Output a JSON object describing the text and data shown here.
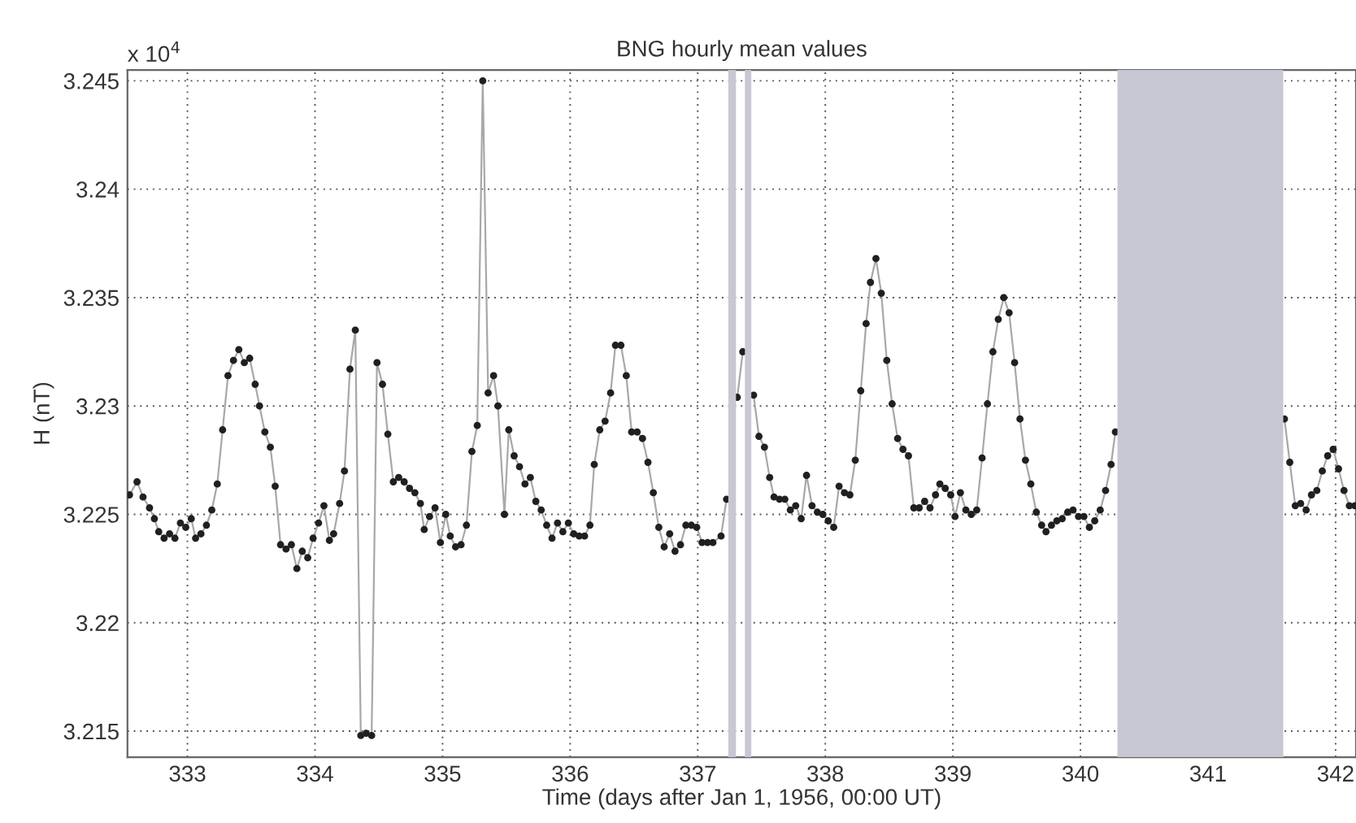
{
  "chart_data": {
    "type": "line",
    "title": "BNG hourly mean values",
    "xlabel": "Time (days after Jan 1, 1956, 00:00 UT)",
    "ylabel": "H (nT)",
    "annotations": [
      "x 10$^{4}$"
    ],
    "xlim": [
      332.53,
      342.16
    ],
    "xticks": [
      333,
      334,
      335,
      336,
      337,
      338,
      339,
      340,
      341,
      342
    ],
    "ylim": [
      3.2138,
      3.2455
    ],
    "yticks": [
      3.215,
      3.22,
      3.225,
      3.23,
      3.235,
      3.24,
      3.245
    ],
    "grid": true,
    "marker": "circle",
    "line_style": "solid",
    "bands": [
      {
        "axis": "x",
        "from": 337.24,
        "to": 337.3,
        "color": "#c8c8d4"
      },
      {
        "axis": "x",
        "from": 337.37,
        "to": 337.42,
        "color": "#c8c8d4"
      },
      {
        "axis": "x",
        "from": 340.29,
        "to": 341.59,
        "color": "#c8c8d4"
      }
    ],
    "series": [
      {
        "color": "#a8a8a8",
        "x": [
          332.546,
          332.605,
          332.652,
          332.703,
          332.741,
          332.775,
          332.817,
          332.86,
          332.902,
          332.945,
          332.987,
          333.03,
          333.064,
          333.106,
          333.149,
          333.191,
          333.234,
          333.276,
          333.318,
          333.361,
          333.403,
          333.446,
          333.488,
          333.531,
          333.565,
          333.607,
          333.65,
          333.688,
          333.73,
          333.773,
          333.815,
          333.858,
          333.9,
          333.943,
          333.985,
          334.028,
          334.07,
          334.113,
          334.146,
          334.193,
          334.231,
          334.274,
          334.316,
          334.359,
          334.401,
          334.444,
          334.486,
          334.529,
          334.571,
          334.614,
          334.656,
          334.699,
          334.741,
          334.783,
          334.826,
          334.856,
          334.898,
          334.941,
          334.983,
          335.025,
          335.06,
          335.102,
          335.145,
          335.187,
          335.23,
          335.272,
          335.315,
          335.357,
          335.4,
          335.434,
          335.485,
          335.519,
          335.561,
          335.603,
          335.646,
          335.688,
          335.731,
          335.773,
          335.816,
          335.858,
          335.901,
          335.943,
          335.986,
          336.028,
          336.071,
          336.113,
          336.155,
          336.189,
          336.232,
          336.274,
          336.317,
          336.355,
          336.398,
          336.44,
          336.482,
          336.525,
          336.567,
          336.61,
          336.652,
          336.695,
          336.737,
          336.78,
          336.822,
          336.865,
          336.907,
          336.95,
          336.992,
          337.034,
          337.077,
          337.119,
          337.183,
          337.226,
          337.27,
          337.31,
          337.353,
          337.395,
          337.438,
          337.48,
          337.523,
          337.564,
          337.598,
          337.641,
          337.683,
          337.726,
          337.768,
          337.811,
          337.853,
          337.896,
          337.938,
          337.981,
          338.023,
          338.066,
          338.108,
          338.15,
          338.193,
          338.235,
          338.278,
          338.32,
          338.354,
          338.397,
          338.439,
          338.482,
          338.524,
          338.567,
          338.609,
          338.652,
          338.694,
          338.736,
          338.779,
          338.821,
          338.864,
          338.898,
          338.94,
          338.983,
          339.017,
          339.059,
          339.102,
          339.144,
          339.187,
          339.229,
          339.271,
          339.314,
          339.356,
          339.399,
          339.441,
          339.484,
          339.526,
          339.569,
          339.611,
          339.654,
          339.696,
          339.73,
          339.773,
          339.815,
          339.857,
          339.9,
          339.942,
          339.985,
          340.027,
          340.07,
          340.112,
          340.155,
          340.197,
          340.24,
          340.274,
          340.9,
          341.599,
          341.641,
          341.684,
          341.726,
          341.769,
          341.811,
          341.853,
          341.896,
          341.938,
          341.981,
          342.023,
          342.066,
          342.108,
          342.151
        ],
        "values": [
          3.2259,
          3.2265,
          3.2258,
          3.2253,
          3.2248,
          3.2242,
          3.2239,
          3.2241,
          3.2239,
          3.2246,
          3.2244,
          3.2248,
          3.2239,
          3.2241,
          3.2245,
          3.2252,
          3.2264,
          3.2289,
          3.2314,
          3.2321,
          3.2326,
          3.232,
          3.2322,
          3.231,
          3.23,
          3.2288,
          3.2281,
          3.2263,
          3.2236,
          3.2234,
          3.2236,
          3.2225,
          3.2233,
          3.223,
          3.2239,
          3.2246,
          3.2254,
          3.2238,
          3.2241,
          3.2255,
          3.227,
          3.2317,
          3.2335,
          3.2148,
          3.2149,
          3.2148,
          3.232,
          3.231,
          3.2287,
          3.2265,
          3.2267,
          3.2265,
          3.2262,
          3.226,
          3.2255,
          3.2243,
          3.2249,
          3.2253,
          3.2237,
          3.225,
          3.224,
          3.2235,
          3.2236,
          3.2245,
          3.2279,
          3.2291,
          3.245,
          3.2306,
          3.2314,
          3.23,
          3.225,
          3.2289,
          3.2277,
          3.2272,
          3.2264,
          3.2267,
          3.2256,
          3.2252,
          3.2245,
          3.2239,
          3.2246,
          3.2242,
          3.2246,
          3.2241,
          3.224,
          3.224,
          3.2245,
          3.2273,
          3.2289,
          3.2293,
          3.2306,
          3.2328,
          3.2328,
          3.2314,
          3.2288,
          3.2288,
          3.2285,
          3.2274,
          3.226,
          3.2244,
          3.2235,
          3.2241,
          3.2233,
          3.2236,
          3.2245,
          3.2245,
          3.2244,
          3.2237,
          3.2237,
          3.2237,
          3.224,
          3.2257,
          null,
          3.2304,
          3.2325,
          null,
          3.2305,
          3.2286,
          3.2281,
          3.2267,
          3.2258,
          3.2257,
          3.2257,
          3.2252,
          3.2254,
          3.2248,
          3.2268,
          3.2254,
          3.2251,
          3.225,
          3.2247,
          3.2244,
          3.2263,
          3.226,
          3.2259,
          3.2275,
          3.2307,
          3.2338,
          3.2357,
          3.2368,
          3.2352,
          3.2321,
          3.2301,
          3.2285,
          3.228,
          3.2277,
          3.2253,
          3.2253,
          3.2256,
          3.2253,
          3.2259,
          3.2264,
          3.2262,
          3.2259,
          3.2249,
          3.226,
          3.2252,
          3.225,
          3.2252,
          3.2276,
          3.2301,
          3.2325,
          3.234,
          3.235,
          3.2343,
          3.232,
          3.2294,
          3.2275,
          3.2264,
          3.2251,
          3.2245,
          3.2242,
          3.2245,
          3.2247,
          3.2248,
          3.2251,
          3.2252,
          3.2249,
          3.2249,
          3.2244,
          3.2247,
          3.2252,
          3.2261,
          3.2273,
          3.2288,
          null,
          3.2294,
          3.2274,
          3.2254,
          3.2255,
          3.2252,
          3.2259,
          3.2261,
          3.227,
          3.2277,
          3.228,
          3.2271,
          3.2261,
          3.2254,
          3.2254
        ]
      }
    ]
  }
}
